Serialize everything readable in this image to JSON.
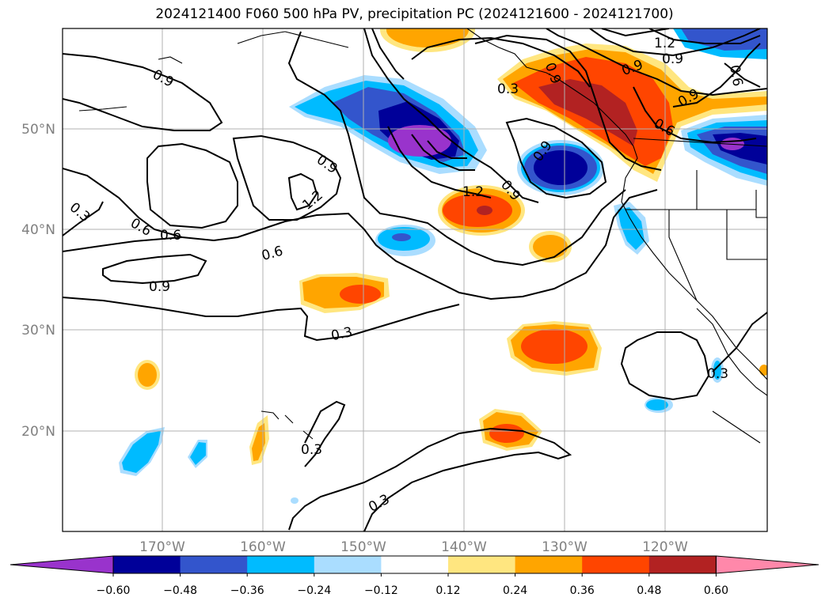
{
  "title": "2024121400 F060 500 hPa PV, precipitation PC (2024121600 - 2024121700)",
  "map": {
    "lon_labels": [
      "170°W",
      "160°W",
      "150°W",
      "140°W",
      "130°W",
      "120°W"
    ],
    "lat_labels": [
      "50°N",
      "40°N",
      "30°N",
      "20°N"
    ],
    "gridlines": true,
    "contour_labels": [
      "0.9",
      "0.9",
      "1.2",
      "0.9",
      "0.6",
      "0.6",
      "0.6",
      "0.3",
      "0.9",
      "0.3",
      "0.3",
      "0.3",
      "0.3",
      "1.2",
      "0.9",
      "0.6",
      "0.9",
      "0.6",
      "0.9",
      "1.2",
      "0.9",
      "0.9",
      "0.3"
    ]
  },
  "colorbar": {
    "ticks": [
      "−0.60",
      "−0.48",
      "−0.36",
      "−0.24",
      "−0.12",
      "0.12",
      "0.24",
      "0.36",
      "0.48",
      "0.60"
    ],
    "colors": [
      "#9933cc",
      "#000099",
      "#3355cc",
      "#00bbff",
      "#aaddff",
      "#ffffff",
      "#ffe680",
      "#ffa500",
      "#ff4500",
      "#b22222",
      "#ff88aa"
    ]
  }
}
